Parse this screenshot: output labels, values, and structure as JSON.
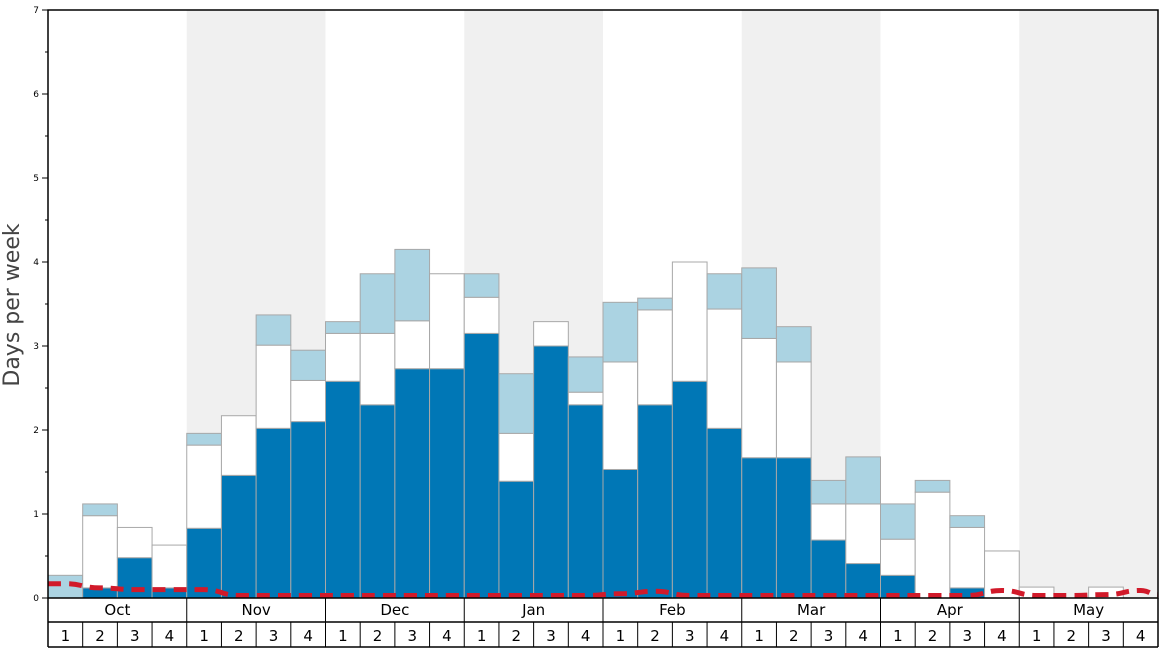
{
  "chart_data": {
    "type": "bar",
    "ylabel": "Days per week",
    "xlabel": "",
    "title": "",
    "ylim": [
      0,
      7
    ],
    "y_ticks": [
      "0",
      "1",
      "2",
      "3",
      "4",
      "5",
      "6",
      "7"
    ],
    "months": [
      "Oct",
      "Nov",
      "Dec",
      "Jan",
      "Feb",
      "Mar",
      "Apr",
      "May"
    ],
    "week_labels": [
      "1",
      "2",
      "3",
      "4"
    ],
    "categories": [
      "Oct 1",
      "Oct 2",
      "Oct 3",
      "Oct 4",
      "Nov 1",
      "Nov 2",
      "Nov 3",
      "Nov 4",
      "Dec 1",
      "Dec 2",
      "Dec 3",
      "Dec 4",
      "Jan 1",
      "Jan 2",
      "Jan 3",
      "Jan 4",
      "Feb 1",
      "Feb 2",
      "Feb 3",
      "Feb 4",
      "Mar 1",
      "Mar 2",
      "Mar 3",
      "Mar 4",
      "Apr 1",
      "Apr 2",
      "Apr 3",
      "Apr 4",
      "May 1",
      "May 2",
      "May 3",
      "May 4"
    ],
    "series": [
      {
        "color": "#0077b6",
        "values": [
          0.0,
          0.12,
          0.48,
          0.12,
          0.83,
          1.46,
          2.02,
          2.1,
          2.58,
          2.3,
          2.73,
          2.73,
          3.15,
          1.39,
          3.0,
          2.3,
          1.53,
          2.3,
          2.58,
          2.02,
          1.67,
          1.67,
          0.69,
          0.41,
          0.27,
          0.0,
          0.12,
          0.0,
          0.0,
          0.0,
          0.0,
          0.0
        ]
      },
      {
        "color": "#ffffff",
        "values": [
          0.0,
          0.86,
          0.36,
          0.51,
          0.99,
          0.71,
          0.99,
          0.49,
          0.57,
          0.85,
          0.57,
          1.13,
          0.43,
          0.57,
          0.29,
          0.15,
          1.28,
          1.13,
          1.42,
          1.42,
          1.42,
          1.14,
          0.43,
          0.71,
          0.43,
          1.26,
          0.72,
          0.56,
          0.13,
          0.0,
          0.13,
          0.0
        ]
      },
      {
        "color": "#abd3e2",
        "values": [
          0.27,
          0.14,
          0.0,
          0.0,
          0.14,
          0.0,
          0.36,
          0.36,
          0.14,
          0.71,
          0.85,
          0.0,
          0.28,
          0.71,
          0.0,
          0.42,
          0.71,
          0.14,
          0.0,
          0.42,
          0.84,
          0.42,
          0.28,
          0.56,
          0.42,
          0.14,
          0.14,
          0.0,
          0.0,
          0.0,
          0.0,
          0.0
        ]
      }
    ],
    "dashed_line": {
      "color": "#d11a2a",
      "values": [
        0.17,
        0.12,
        0.1,
        0.1,
        0.1,
        0.03,
        0.03,
        0.03,
        0.03,
        0.03,
        0.03,
        0.03,
        0.03,
        0.03,
        0.03,
        0.03,
        0.05,
        0.08,
        0.03,
        0.03,
        0.03,
        0.03,
        0.03,
        0.03,
        0.03,
        0.03,
        0.03,
        0.09,
        0.03,
        0.03,
        0.04,
        0.09
      ]
    },
    "grid": false,
    "legend": "none",
    "alternate_month_shading": "#f0f0f0"
  }
}
